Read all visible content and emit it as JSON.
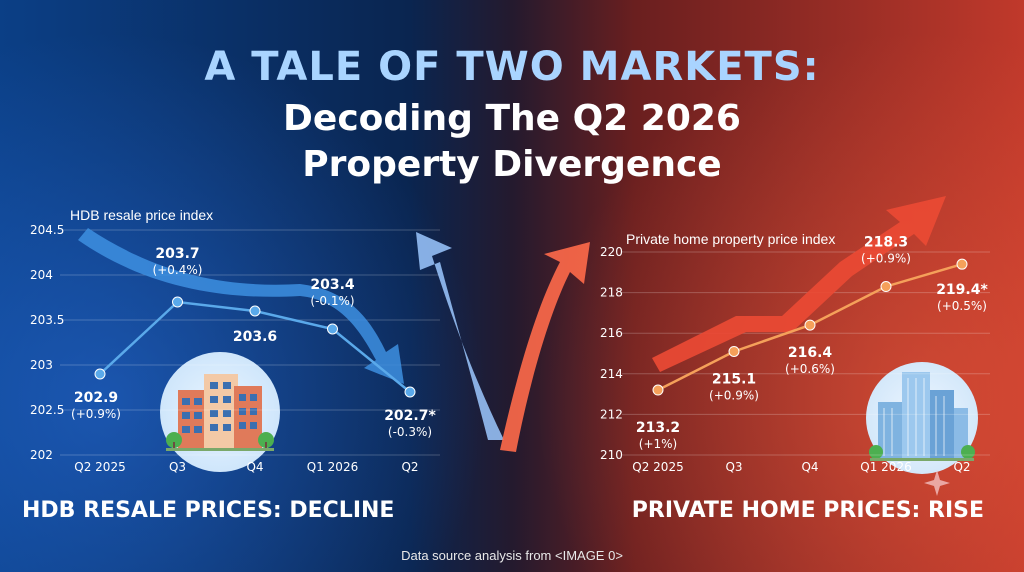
{
  "title": {
    "line1": "A TALE OF TWO MARKETS:",
    "line2": "Decoding The Q2 2026",
    "line3": "Property Divergence"
  },
  "chart_data": [
    {
      "type": "line",
      "axis_title": "HDB resale price index",
      "categories": [
        "Q2 2025",
        "Q3",
        "Q4",
        "Q1 2026",
        "Q2"
      ],
      "values": [
        202.9,
        203.7,
        203.6,
        203.4,
        202.7
      ],
      "value_labels": [
        "202.9",
        "203.7",
        "203.6",
        "203.4",
        "202.7*"
      ],
      "change_labels": [
        "(+0.9%)",
        "(+0.4%)",
        "",
        "(-0.1%)",
        "(-0.3%)"
      ],
      "yticks": [
        "204.5",
        "204",
        "203.5",
        "203",
        "202.5",
        "202"
      ],
      "ylim": [
        202,
        204.5
      ],
      "trend": "decline",
      "line_color": "#5aa9ea",
      "caption": "HDB RESALE PRICES: DECLINE"
    },
    {
      "type": "line",
      "axis_title": "Private home property price index",
      "categories": [
        "Q2 2025",
        "Q3",
        "Q4",
        "Q1 2026",
        "Q2"
      ],
      "values": [
        213.2,
        215.1,
        216.4,
        218.3,
        219.4
      ],
      "value_labels": [
        "213.2",
        "215.1",
        "216.4",
        "218.3",
        "219.4*"
      ],
      "change_labels": [
        "(+1%)",
        "(+0.9%)",
        "(+0.6%)",
        "(+0.9%)",
        "(+0.5%)"
      ],
      "yticks": [
        "220",
        "218",
        "216",
        "214",
        "212",
        "210"
      ],
      "ylim": [
        210,
        220
      ],
      "trend": "rise",
      "line_color": "#f5a05a",
      "caption": "PRIVATE HOME PRICES: RISE"
    }
  ],
  "source_text": "Data source analysis from <IMAGE 0>",
  "colors": {
    "left_bg": "#0b3f86",
    "right_bg": "#c0392b",
    "title_accent": "#a9d4ff"
  },
  "icons": [
    "hdb-building-icon",
    "condo-building-icon",
    "sparkle-icon"
  ]
}
